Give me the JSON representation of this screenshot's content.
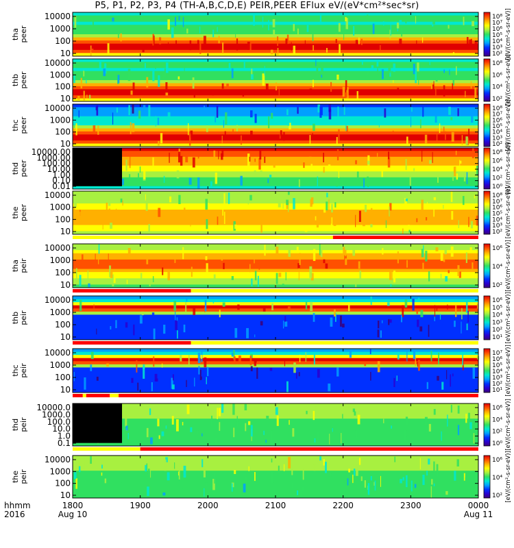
{
  "title": "P5, P1, P2, P3, P4 (TH-A,B,C,D,E) PEIR,PEER EFlux eV/(eV*cm²*sec*sr)",
  "chart_data": {
    "type": "heatmap",
    "time_axis": {
      "row_label": "hhmm",
      "year_label": "2016",
      "ticks": [
        "1800",
        "1900",
        "2000",
        "2100",
        "2200",
        "2300",
        "0000"
      ],
      "tick_hours": [
        18,
        19,
        20,
        21,
        22,
        23,
        24
      ],
      "range_hours": [
        18,
        24
      ],
      "dates": [
        {
          "hour": 18,
          "text": "Aug 10"
        },
        {
          "hour": 24,
          "text": "Aug 11"
        }
      ]
    },
    "colorbar_unit": "[eV/(cm²-s-sr-eV)]",
    "panels": [
      {
        "probe": "tha",
        "species": "peer",
        "label": [
          "tha",
          "peer"
        ],
        "yticks": [
          "10000",
          "1000",
          "100",
          "10"
        ],
        "ylog_range": [
          1,
          4.5
        ],
        "cbar_ticks": [
          "10⁸",
          "10⁷",
          "10⁶",
          "10⁵",
          "10⁴",
          "10³",
          "10²"
        ]
      },
      {
        "probe": "thb",
        "species": "peer",
        "label": [
          "thb",
          "peer"
        ],
        "yticks": [
          "10000",
          "1000",
          "100",
          "10"
        ],
        "ylog_range": [
          1,
          4.5
        ],
        "cbar_ticks": [
          "10⁸",
          "10⁶",
          "10⁴",
          "10²"
        ]
      },
      {
        "probe": "thc",
        "species": "peer",
        "label": [
          "thc",
          "peer"
        ],
        "yticks": [
          "10000",
          "1000",
          "100",
          "10"
        ],
        "ylog_range": [
          1,
          4.5
        ],
        "cbar_ticks": [
          "10⁸",
          "10⁷",
          "10⁶",
          "10⁵",
          "10⁴",
          "10³",
          "10²"
        ]
      },
      {
        "probe": "thd",
        "species": "peer",
        "label": [
          "thd",
          "peer"
        ],
        "yticks": [
          "10000.00",
          "1000.00",
          "100.00",
          "10.00",
          "1.00",
          "0.10",
          "0.01"
        ],
        "ylog_range": [
          -2,
          4.5
        ],
        "cbar_ticks": [
          "10⁸",
          "10⁶",
          "10⁴",
          "10²",
          "10⁰"
        ]
      },
      {
        "probe": "the",
        "species": "peer",
        "label": [
          "the",
          "peer"
        ],
        "yticks": [
          "10000",
          "1000",
          "100",
          "10"
        ],
        "ylog_range": [
          1,
          4.5
        ],
        "cbar_ticks": [
          "10⁸",
          "10⁷",
          "10⁶",
          "10⁵",
          "10⁴",
          "10³",
          "10²"
        ]
      },
      {
        "probe": "tha",
        "species": "peir",
        "label": [
          "tha",
          "peir"
        ],
        "yticks": [
          "10000",
          "1000",
          "100",
          "10"
        ],
        "ylog_range": [
          1,
          4.5
        ],
        "cbar_ticks": [
          "10⁶",
          "10⁴",
          "10²"
        ]
      },
      {
        "probe": "thb",
        "species": "peir",
        "label": [
          "thb",
          "peir"
        ],
        "yticks": [
          "10000",
          "1000",
          "100",
          "10"
        ],
        "ylog_range": [
          1,
          4.5
        ],
        "cbar_ticks": [
          "10⁶",
          "10⁵",
          "10⁴",
          "10³",
          "10²",
          "10¹"
        ]
      },
      {
        "probe": "thc",
        "species": "peir",
        "label": [
          "thc",
          "peir"
        ],
        "yticks": [
          "10000",
          "1000",
          "100",
          "10"
        ],
        "ylog_range": [
          1,
          4.5
        ],
        "cbar_ticks": [
          "10⁷",
          "10⁶",
          "10⁵",
          "10⁴",
          "10³",
          "10²",
          "10¹"
        ]
      },
      {
        "probe": "thd",
        "species": "peir",
        "label": [
          "thd",
          "peir"
        ],
        "yticks": [
          "10000.0",
          "1000.0",
          "100.0",
          "10.0",
          "1.0",
          "0.1"
        ],
        "ylog_range": [
          -1,
          4.5
        ],
        "cbar_ticks": [
          "10⁶",
          "10⁴",
          "10²",
          "10⁰"
        ]
      },
      {
        "probe": "the",
        "species": "peir",
        "label": [
          "the",
          "peir"
        ],
        "yticks": [
          "10000",
          "1000",
          "100",
          "10"
        ],
        "ylog_range": [
          1,
          4.5
        ],
        "cbar_ticks": [
          "10⁶",
          "10⁴",
          "10²"
        ]
      }
    ],
    "mode_bars": [
      {
        "after_panel": 4,
        "segments": [
          {
            "from_hour": 18,
            "to_hour": 21.85,
            "color": "#ffff00"
          },
          {
            "from_hour": 21.85,
            "to_hour": 24,
            "color": "#ff0000"
          }
        ]
      },
      {
        "after_panel": 5,
        "segments": [
          {
            "from_hour": 18,
            "to_hour": 19.75,
            "color": "#ff0000"
          },
          {
            "from_hour": 19.75,
            "to_hour": 24,
            "color": "#ffff00"
          }
        ]
      },
      {
        "after_panel": 6,
        "segments": [
          {
            "from_hour": 18,
            "to_hour": 19.75,
            "color": "#ff0000"
          },
          {
            "from_hour": 19.75,
            "to_hour": 24,
            "color": "#ffff00"
          }
        ]
      },
      {
        "after_panel": 7,
        "segments": [
          {
            "from_hour": 18,
            "to_hour": 18.15,
            "color": "#ff0000"
          },
          {
            "from_hour": 18.15,
            "to_hour": 18.2,
            "color": "#ffff00"
          },
          {
            "from_hour": 18.2,
            "to_hour": 18.55,
            "color": "#ff0000"
          },
          {
            "from_hour": 18.55,
            "to_hour": 18.68,
            "color": "#ffff00"
          },
          {
            "from_hour": 18.68,
            "to_hour": 24,
            "color": "#ff0000"
          }
        ]
      },
      {
        "after_panel": 8,
        "segments": [
          {
            "from_hour": 18,
            "to_hour": 19.0,
            "color": "#ffff00"
          },
          {
            "from_hour": 19.0,
            "to_hour": 24,
            "color": "#ff0000"
          }
        ]
      }
    ],
    "colors": {
      "colormap": [
        "#3c0078",
        "#2a00d0",
        "#0030ff",
        "#00a0ff",
        "#00e8d0",
        "#30e060",
        "#a8f040",
        "#ffff00",
        "#ffb000",
        "#ff5000",
        "#e00000"
      ],
      "background": "#ffffff",
      "fill_blank": "#000000"
    }
  }
}
